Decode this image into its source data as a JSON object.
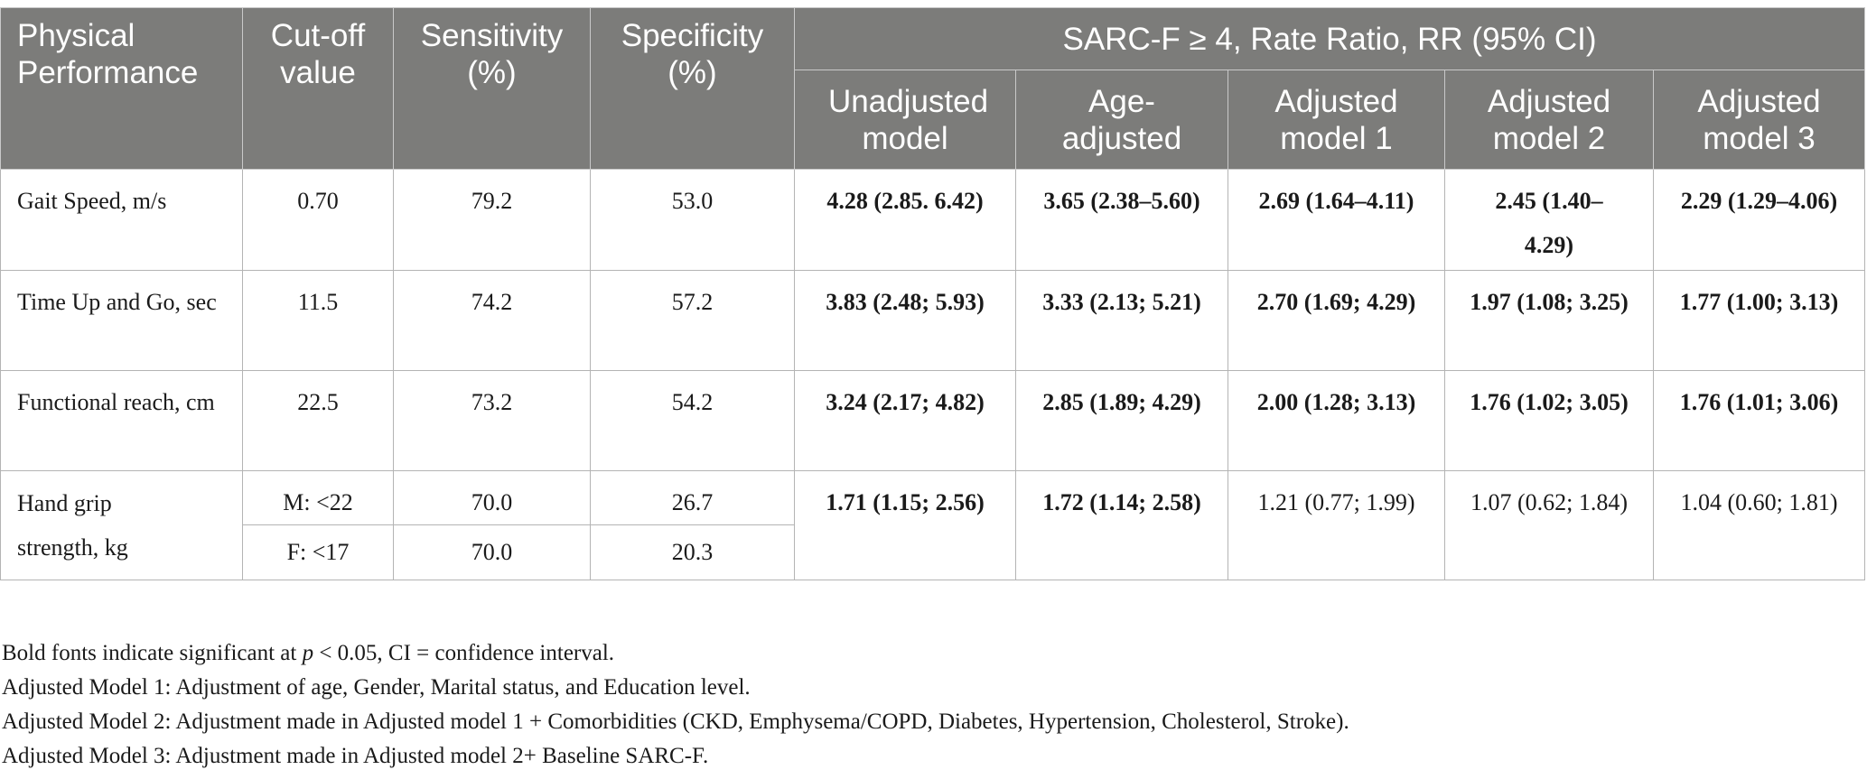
{
  "table": {
    "headers": {
      "physical_performance": "Physical Performance",
      "cutoff": "Cut-off value",
      "sensitivity": "Sensitivity (%)",
      "specificity": "Specificity (%)",
      "group": "SARC-F ≥ 4, Rate Ratio, RR (95% CI)",
      "models": [
        "Unadjusted model",
        "Age-adjusted",
        "Adjusted model 1",
        "Adjusted model 2",
        "Adjusted model 3"
      ]
    },
    "rows": [
      {
        "label": "Gait Speed, m/s",
        "cutoff": "0.70",
        "sensitivity": "79.2",
        "specificity": "53.0",
        "rr": [
          "4.28 (2.85. 6.42)",
          "3.65 (2.38–5.60)",
          "2.69 (1.64–4.11)",
          "2.45 (1.40–4.29)",
          "2.29 (1.29–4.06)"
        ]
      },
      {
        "label": "Time Up and Go, sec",
        "cutoff": "11.5",
        "sensitivity": "74.2",
        "specificity": "57.2",
        "rr": [
          "3.83 (2.48; 5.93)",
          "3.33 (2.13; 5.21)",
          "2.70 (1.69; 4.29)",
          "1.97 (1.08; 3.25)",
          "1.77 (1.00; 3.13)"
        ]
      },
      {
        "label": "Functional reach, cm",
        "cutoff": "22.5",
        "sensitivity": "73.2",
        "specificity": "54.2",
        "rr": [
          "3.24 (2.17; 4.82)",
          "2.85 (1.89; 4.29)",
          "2.00 (1.28; 3.13)",
          "1.76 (1.02; 3.05)",
          "1.76 (1.01; 3.06)"
        ]
      },
      {
        "label": "Hand grip strength, kg",
        "sub": [
          {
            "cutoff": "M: <22",
            "sensitivity": "70.0",
            "specificity": "26.7"
          },
          {
            "cutoff": "F: <17",
            "sensitivity": "70.0",
            "specificity": "20.3"
          }
        ],
        "rr": [
          "1.71 (1.15; 2.56)",
          "1.72 (1.14; 2.58)",
          "1.21 (0.77; 1.99)",
          "1.07 (0.62; 1.84)",
          "1.04 (0.60; 1.81)"
        ]
      }
    ]
  },
  "notes": {
    "line1_prefix": "Bold fonts indicate significant at ",
    "line1_p": "p",
    "line1_suffix": " < 0.05, CI = confidence interval.",
    "line2": "Adjusted Model 1: Adjustment of age, Gender, Marital status, and Education level.",
    "line3": "Adjusted Model 2: Adjustment made in Adjusted model 1 + Comorbidities (CKD, Emphysema/COPD, Diabetes, Hypertension, Cholesterol, Stroke).",
    "line4": "Adjusted Model 3: Adjustment made in Adjusted model 2+ Baseline SARC-F."
  }
}
